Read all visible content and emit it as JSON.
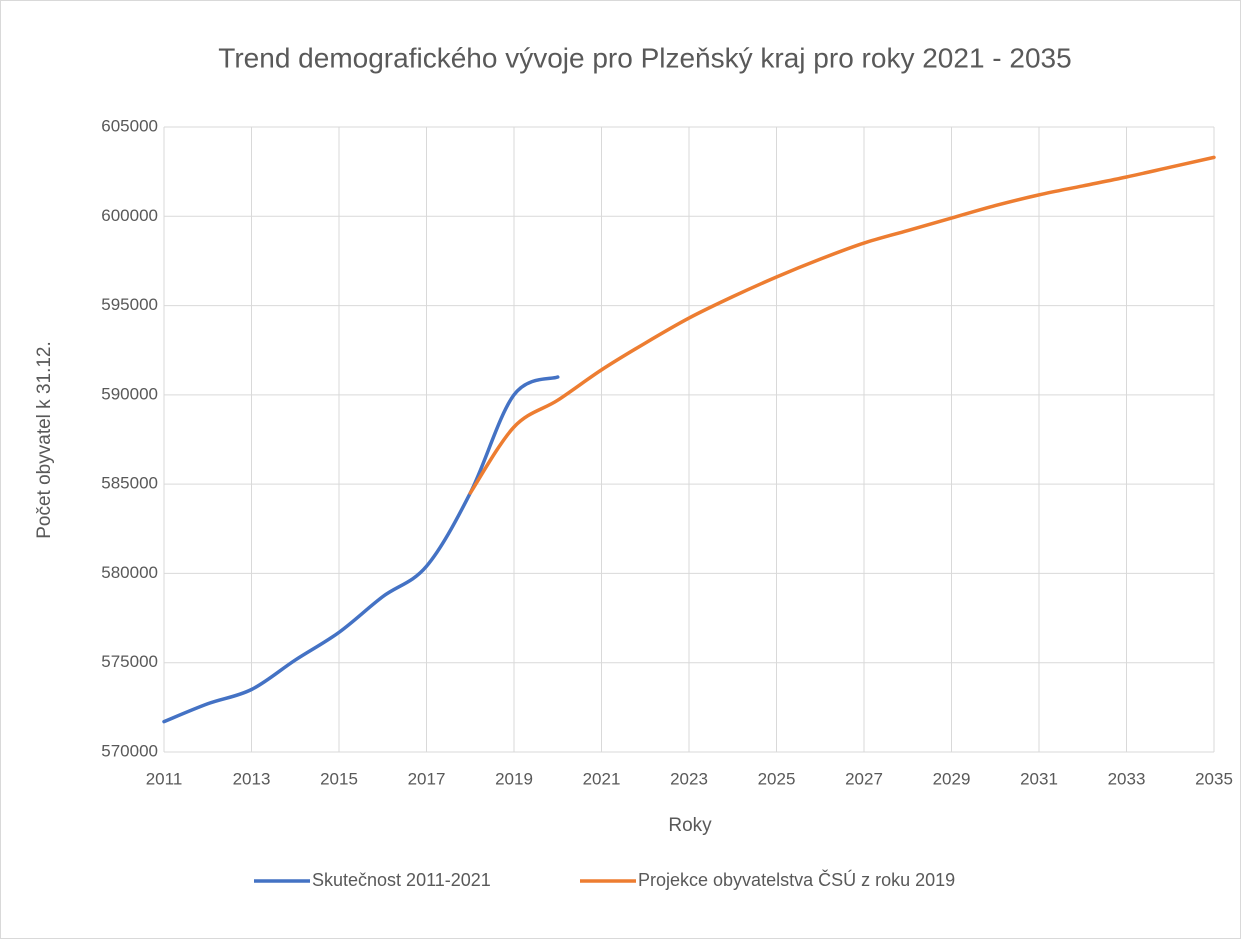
{
  "chart_data": {
    "type": "line",
    "title": "Trend demografického vývoje pro Plzeňský kraj pro roky 2021 - 2035",
    "xlabel": "Roky",
    "ylabel": "Počet obyvatel k 31.12.",
    "series": [
      {
        "name": "Skutečnost 2011-2021",
        "color": "#4472c4",
        "x": [
          2011,
          2012,
          2013,
          2014,
          2015,
          2016,
          2017,
          2018,
          2019,
          2020
        ],
        "values": [
          571700,
          572700,
          573500,
          575150,
          576700,
          578700,
          580400,
          584500,
          590000,
          591000
        ]
      },
      {
        "name": "Projekce obyvatelstva ČSÚ z roku 2019",
        "color": "#ed7d31",
        "x": [
          2018,
          2019,
          2020,
          2021,
          2022,
          2023,
          2024,
          2025,
          2026,
          2027,
          2028,
          2029,
          2030,
          2031,
          2032,
          2033,
          2034,
          2035
        ],
        "values": [
          584500,
          588200,
          589700,
          591400,
          592900,
          594300,
          595500,
          596600,
          597600,
          598500,
          599200,
          599900,
          600600,
          601200,
          601700,
          602200,
          602750,
          603300
        ]
      }
    ],
    "xlim": [
      2011,
      2035
    ],
    "xticks": [
      2011,
      2013,
      2015,
      2017,
      2019,
      2021,
      2023,
      2025,
      2027,
      2029,
      2031,
      2033,
      2035
    ],
    "ylim": [
      570000,
      605000
    ],
    "yticks": [
      570000,
      575000,
      580000,
      585000,
      590000,
      595000,
      600000,
      605000
    ],
    "grid": true,
    "legend": "bottom"
  }
}
